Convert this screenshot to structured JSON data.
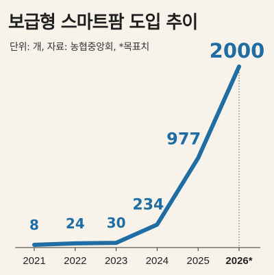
{
  "title": "보급형 스마트팜 도입 추이",
  "subtitle": "단위: 개, 자료: 농협중앙회, *목표치",
  "colors": {
    "line": "#1f6da3",
    "label": "#1f6da3",
    "axis": "#333333",
    "background": "#f7f3ea",
    "dotted_guide": "#777777"
  },
  "chart_data": {
    "type": "line",
    "title": "보급형 스마트팜 도입 추이",
    "subtitle": "단위: 개, 자료: 농협중앙회, *목표치",
    "categories": [
      "2021",
      "2022",
      "2023",
      "2024",
      "2025",
      "2026*"
    ],
    "series": [
      {
        "values": [
          8,
          24,
          30,
          234,
          977,
          2000
        ],
        "labels": [
          "8",
          "24",
          "30",
          "234",
          "977",
          "2000"
        ]
      }
    ],
    "ylim": [
      0,
      2000
    ],
    "grid": false
  }
}
